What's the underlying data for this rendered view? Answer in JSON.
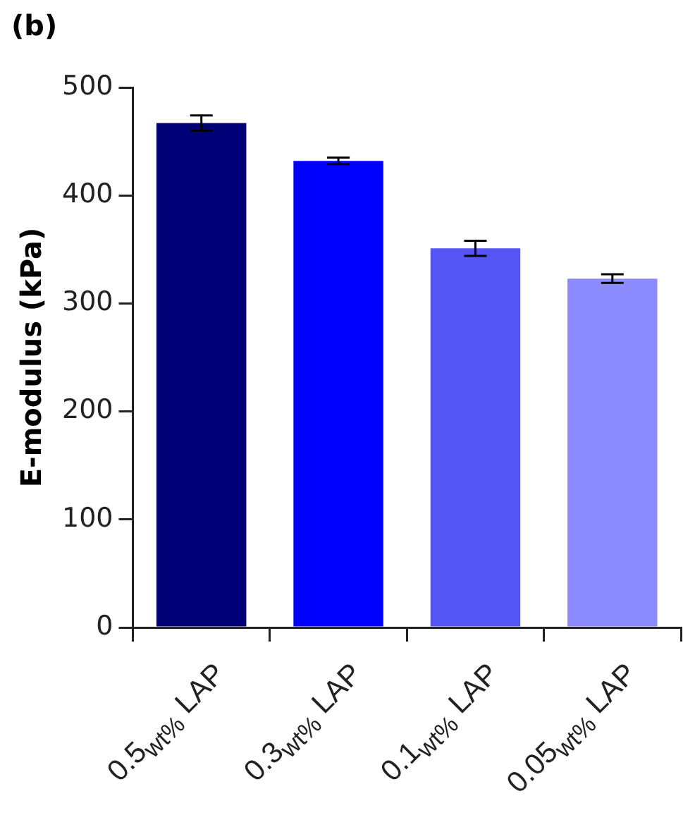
{
  "chart_data": {
    "type": "bar",
    "title": "(b)",
    "ylabel": "E-modulus (kPa)",
    "categories": [
      "0.5$_{wt%}$ LAP",
      "0.3$_{wt%}$ LAP",
      "0.1$_{wt%}$ LAP",
      "0.05$_{wt%}$ LAP"
    ],
    "values": [
      467,
      432,
      351,
      323
    ],
    "errors": [
      7,
      3,
      7,
      4
    ],
    "colors": [
      "#000077",
      "#0000ff",
      "#5555f5",
      "#8c8cff"
    ],
    "ylim": [
      0,
      500
    ],
    "yticks": [
      0,
      100,
      200,
      300,
      400,
      500
    ],
    "grid": false,
    "legend": false
  }
}
